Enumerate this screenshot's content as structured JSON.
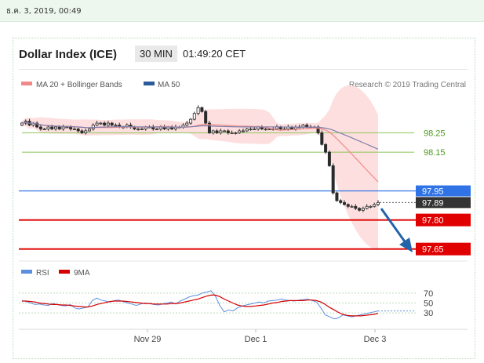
{
  "timestamp": "ธ.ค. 3, 2019, 00:49",
  "header": {
    "title": "Dollar Index (ICE)",
    "timeframe": "30 MIN",
    "time": "01:49:20 CET"
  },
  "legend": {
    "ma20": "MA 20 + Bollinger Bands",
    "ma50": "MA 50",
    "credit": "Research © 2019 Trading Central",
    "rsi": "RSI",
    "ma9": "9MA"
  },
  "colors": {
    "candle": "#2a2a2a",
    "band_fill": "#fdd9d9",
    "ma20": "#f08a8a",
    "ma50": "#7e7eaa",
    "resistance": "#8cc45a",
    "blue_level": "#2f73e6",
    "red_level": "#e00000",
    "rsi_line": "#5b8fe0",
    "rsi_ma": "#d40000",
    "arrow": "#2463a8"
  },
  "chart_data": [
    {
      "type": "candlestick",
      "title": "Dollar Index (ICE)",
      "x_labels": [
        "Nov 29",
        "Dec 1",
        "Dec 3"
      ],
      "ylim": [
        97.6,
        98.45
      ],
      "series": [
        {
          "name": "MA 20 + Bollinger Bands"
        },
        {
          "name": "MA 50"
        }
      ],
      "closes": [
        98.3,
        98.31,
        98.29,
        98.3,
        98.28,
        98.27,
        98.27,
        98.28,
        98.27,
        98.28,
        98.27,
        98.28,
        98.28,
        98.27,
        98.27,
        98.26,
        98.25,
        98.26,
        98.27,
        98.29,
        98.3,
        98.3,
        98.29,
        98.3,
        98.29,
        98.29,
        98.28,
        98.28,
        98.29,
        98.28,
        98.27,
        98.27,
        98.27,
        98.28,
        98.28,
        98.27,
        98.27,
        98.28,
        98.27,
        98.28,
        98.27,
        98.28,
        98.28,
        98.29,
        98.3,
        98.32,
        98.35,
        98.38,
        98.36,
        98.3,
        98.25,
        98.26,
        98.25,
        98.26,
        98.26,
        98.25,
        98.25,
        98.25,
        98.26,
        98.26,
        98.27,
        98.27,
        98.27,
        98.28,
        98.27,
        98.27,
        98.27,
        98.27,
        98.28,
        98.27,
        98.27,
        98.28,
        98.27,
        98.28,
        98.28,
        98.29,
        98.28,
        98.28,
        98.28,
        98.25,
        98.19,
        98.15,
        98.08,
        97.94,
        97.9,
        97.89,
        97.88,
        97.87,
        97.87,
        97.86,
        97.85,
        97.86,
        97.87,
        97.87,
        97.88,
        97.89
      ],
      "levels": [
        {
          "value": 98.25,
          "label": "98.25",
          "kind": "resistance"
        },
        {
          "value": 98.15,
          "label": "98.15",
          "kind": "resistance"
        },
        {
          "value": 97.95,
          "label": "97.95",
          "kind": "pivot"
        },
        {
          "value": 97.89,
          "label": "97.89",
          "kind": "last"
        },
        {
          "value": 97.8,
          "label": "97.80",
          "kind": "support"
        },
        {
          "value": 97.65,
          "label": "97.65",
          "kind": "support"
        }
      ]
    },
    {
      "type": "line",
      "title": "RSI",
      "x_labels": [
        "Nov 29",
        "Dec 1",
        "Dec 3"
      ],
      "ylim": [
        0,
        100
      ],
      "y_ticks": [
        "70",
        "50",
        "30"
      ],
      "series": [
        {
          "name": "RSI",
          "values": [
            55,
            53,
            50,
            47,
            48,
            46,
            45,
            49,
            47,
            45,
            44,
            47,
            40,
            38,
            40,
            42,
            55,
            60,
            56,
            54,
            52,
            55,
            56,
            53,
            50,
            48,
            45,
            48,
            50,
            49,
            47,
            46,
            48,
            50,
            52,
            48,
            54,
            58,
            62,
            65,
            66,
            70,
            72,
            75,
            64,
            45,
            32,
            36,
            34,
            40,
            44,
            46,
            48,
            50,
            52,
            50,
            54,
            55,
            56,
            58,
            56,
            55,
            54,
            56,
            57,
            58,
            55,
            52,
            40,
            26,
            22,
            18,
            20,
            26,
            24,
            22,
            24,
            26,
            28,
            30,
            32,
            34
          ]
        },
        {
          "name": "9MA",
          "values": [
            54,
            54,
            53,
            52,
            50,
            49,
            48,
            47,
            47,
            46,
            46,
            45,
            44,
            43,
            42,
            42,
            44,
            47,
            49,
            51,
            53,
            54,
            54,
            54,
            53,
            52,
            51,
            50,
            49,
            49,
            48,
            48,
            48,
            48,
            49,
            49,
            50,
            52,
            54,
            56,
            58,
            61,
            64,
            66,
            66,
            63,
            58,
            54,
            50,
            46,
            44,
            43,
            43,
            44,
            45,
            46,
            48,
            50,
            51,
            53,
            54,
            55,
            55,
            55,
            55,
            56,
            56,
            55,
            52,
            47,
            41,
            36,
            31,
            27,
            25,
            24,
            24,
            24,
            25,
            26,
            27,
            29
          ]
        }
      ]
    }
  ]
}
